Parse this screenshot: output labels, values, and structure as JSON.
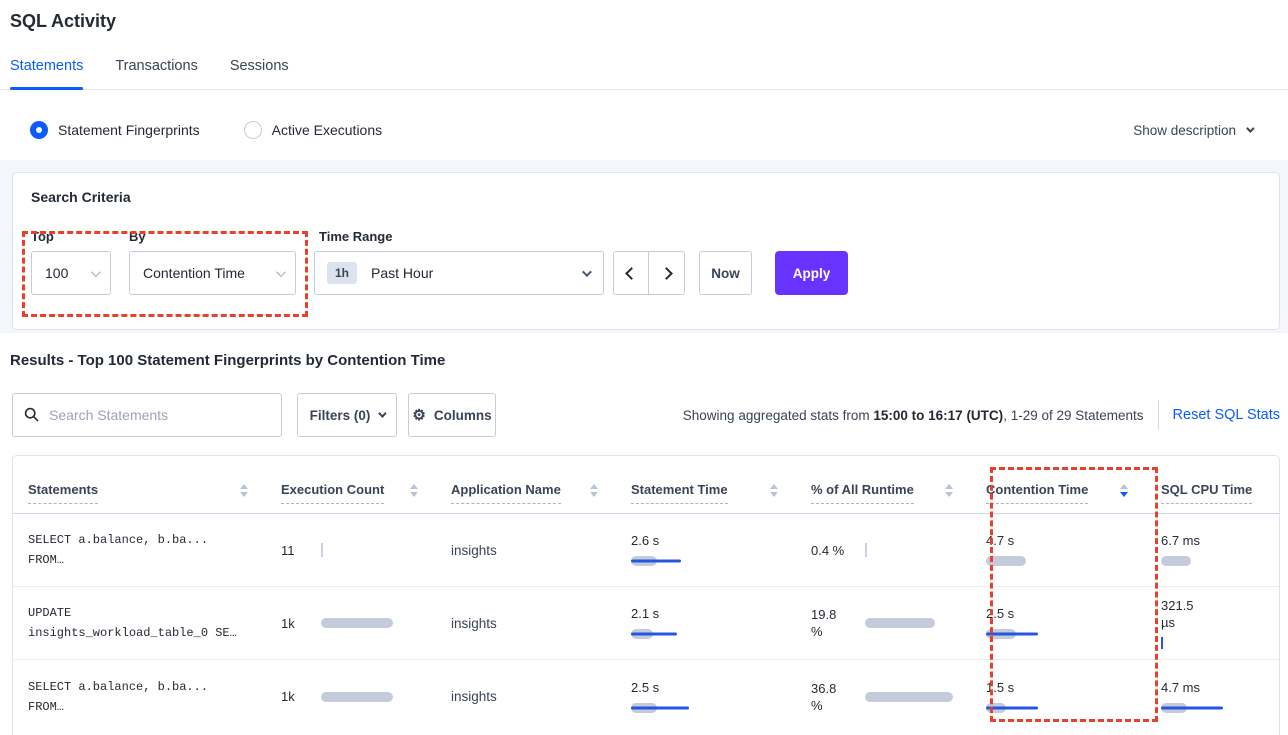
{
  "page": {
    "title": "SQL Activity"
  },
  "tabs": [
    {
      "label": "Statements",
      "active": true
    },
    {
      "label": "Transactions",
      "active": false
    },
    {
      "label": "Sessions",
      "active": false
    }
  ],
  "view_toggle": {
    "options": [
      {
        "label": "Statement Fingerprints",
        "selected": true
      },
      {
        "label": "Active Executions",
        "selected": false
      }
    ],
    "show_description": "Show description"
  },
  "search_criteria": {
    "heading": "Search Criteria",
    "top": {
      "label": "Top",
      "value": "100"
    },
    "by": {
      "label": "By",
      "value": "Contention Time"
    },
    "time_range": {
      "label": "Time Range",
      "badge": "1h",
      "value": "Past Hour"
    },
    "now_label": "Now",
    "apply_label": "Apply"
  },
  "results": {
    "heading": "Results - Top 100 Statement Fingerprints by Contention Time",
    "search_placeholder": "Search Statements",
    "filters_label": "Filters (0)",
    "columns_label": "Columns",
    "stats_prefix": "Showing aggregated stats from ",
    "stats_range": "15:00 to 16:17 (UTC)",
    "stats_suffix": ", 1-29 of 29 Statements",
    "reset_link": "Reset SQL Stats"
  },
  "table": {
    "columns": [
      {
        "label": "Statements",
        "sorted": "none"
      },
      {
        "label": "Execution Count",
        "sorted": "none"
      },
      {
        "label": "Application Name",
        "sorted": "none"
      },
      {
        "label": "Statement Time",
        "sorted": "none"
      },
      {
        "label": "% of All Runtime",
        "sorted": "none"
      },
      {
        "label": "Contention Time",
        "sorted": "desc"
      },
      {
        "label": "SQL CPU Time",
        "sorted": "none"
      }
    ],
    "rows": [
      {
        "statement": [
          "SELECT a.balance, b.ba...",
          "FROM…"
        ],
        "execution_count": "11",
        "application": "insights",
        "statement_time": "2.6 s",
        "pct_runtime": "0.4 %",
        "contention_time": "4.7 s",
        "sql_cpu_time": "6.7 ms",
        "bars": {
          "exec": {
            "tick": "gray"
          },
          "stmt": {
            "gray": 26,
            "blue": 50
          },
          "pct": {
            "tick": "gray"
          },
          "cont": {
            "gray": 40
          },
          "cpu": {
            "gray": 30
          }
        }
      },
      {
        "statement": [
          "UPDATE",
          "insights_workload_table_0 SE…"
        ],
        "execution_count": "1k",
        "application": "insights",
        "statement_time": "2.1 s",
        "pct_runtime": "19.8 %",
        "contention_time": "2.5 s",
        "sql_cpu_time": "321.5 µs",
        "bars": {
          "exec": {
            "gray": 72
          },
          "stmt": {
            "gray": 22,
            "blue": 46
          },
          "pct": {
            "gray": 70
          },
          "cont": {
            "gray": 30,
            "blue": 52
          },
          "cpu": {
            "tick": "blue"
          }
        }
      },
      {
        "statement": [
          "SELECT a.balance, b.ba...",
          "FROM…"
        ],
        "execution_count": "1k",
        "application": "insights",
        "statement_time": "2.5 s",
        "pct_runtime": "36.8 %",
        "contention_time": "1.5 s",
        "sql_cpu_time": "4.7 ms",
        "bars": {
          "exec": {
            "gray": 72
          },
          "stmt": {
            "gray": 26,
            "blue": 58
          },
          "pct": {
            "gray": 88
          },
          "cont": {
            "gray": 20,
            "blue": 52
          },
          "cpu": {
            "gray": 26,
            "blue": 62
          }
        }
      }
    ]
  },
  "icons": {
    "gear_glyph": "⚙"
  },
  "annotations": {
    "color": "#e8402a",
    "style": "red-dashed-rectangle",
    "targets": [
      "Top and By selectors",
      "Contention Time column"
    ]
  },
  "colors": {
    "accent_blue": "#0b5bff",
    "apply_purple": "#6933ff",
    "bar_gray": "#c4cbda",
    "bar_blue": "#2456e0",
    "annotation_red": "#e8402a"
  }
}
